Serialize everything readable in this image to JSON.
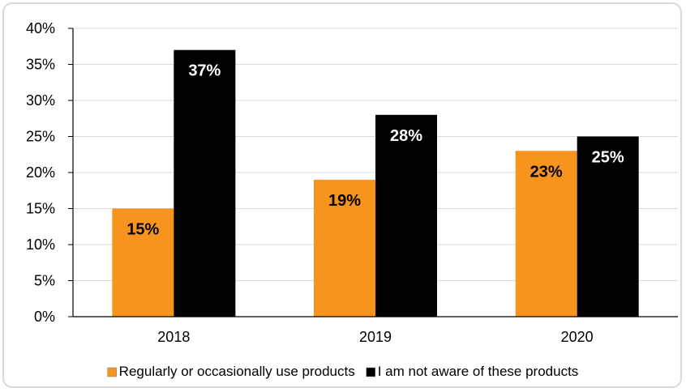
{
  "chart_data": {
    "type": "bar",
    "categories": [
      "2018",
      "2019",
      "2020"
    ],
    "series": [
      {
        "name": "Regularly or occasionally use products",
        "values": [
          15,
          19,
          23
        ],
        "labels": [
          "15%",
          "19%",
          "23%"
        ],
        "color": "#f7941d",
        "label_color": "#000000"
      },
      {
        "name": "I am not aware of these products",
        "values": [
          37,
          28,
          25
        ],
        "labels": [
          "37%",
          "28%",
          "25%"
        ],
        "color": "#000000",
        "label_color": "#ffffff"
      }
    ],
    "y_ticks": [
      "0%",
      "5%",
      "10%",
      "15%",
      "20%",
      "25%",
      "30%",
      "35%",
      "40%"
    ],
    "ylim": [
      0,
      40
    ],
    "grid": true,
    "legend": "bottom",
    "title": "",
    "xlabel": "",
    "ylabel": ""
  }
}
